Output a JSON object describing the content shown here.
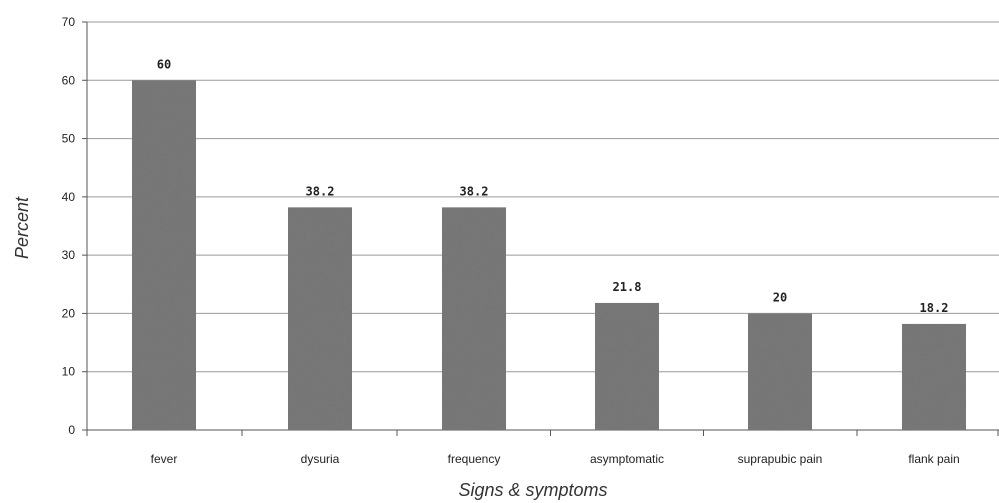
{
  "chart_data": {
    "type": "bar",
    "categories": [
      "fever",
      "dysuria",
      "frequency",
      "asymptomatic",
      "suprapubic pain",
      "flank pain"
    ],
    "values": [
      60,
      38.2,
      38.2,
      21.8,
      20,
      18.2
    ],
    "value_labels": [
      "60",
      "38.2",
      "38.2",
      "21.8",
      "20",
      "18.2"
    ],
    "xlabel": "Signs & symptoms",
    "ylabel": "Percent",
    "ylim": [
      0,
      70
    ],
    "yticks": [
      0,
      10,
      20,
      30,
      40,
      50,
      60,
      70
    ],
    "grid": true,
    "bar_color": "#7a7a7a",
    "grid_color": "#9a9a9a",
    "axis_color": "#555555"
  }
}
